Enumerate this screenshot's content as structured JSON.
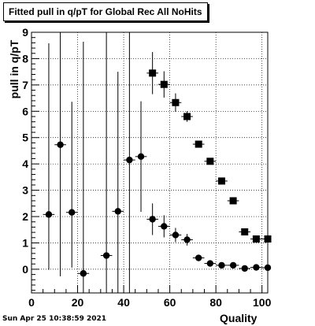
{
  "title": "Fitted pull in q/pT for Global Rec All NoHits",
  "timestamp": "Sun Apr 25 10:38:59 2021",
  "chart_data": {
    "type": "scatter",
    "title": "Fitted pull in q/pT for Global Rec All NoHits",
    "xlabel": "Quality",
    "ylabel": "pull in q/pT",
    "xlim": [
      0,
      102.5
    ],
    "ylim": [
      -0.9,
      9
    ],
    "x_ticks": [
      0,
      20,
      40,
      60,
      80,
      100
    ],
    "y_ticks": [
      0,
      1,
      2,
      3,
      4,
      5,
      6,
      7,
      8,
      9
    ],
    "grid": true,
    "series": [
      {
        "marker": "circle",
        "points": [
          {
            "x": 7.5,
            "y": 2.08,
            "xerr": 2.5,
            "yerr": [
              2.1,
              6.5
            ]
          },
          {
            "x": 12.5,
            "y": 4.73,
            "xerr": 2.5,
            "yerr": [
              5.0,
              5.0
            ]
          },
          {
            "x": 17.5,
            "y": 2.16,
            "xerr": 2.5,
            "yerr": [
              2.1,
              4.2
            ]
          },
          {
            "x": 22.5,
            "y": -0.16,
            "xerr": 2.5,
            "yerr": [
              1.0,
              8.8
            ]
          },
          {
            "x": 32.5,
            "y": 0.52,
            "xerr": 2.5,
            "yerr": [
              1.6,
              8.6
            ]
          },
          {
            "x": 37.5,
            "y": 2.2,
            "xerr": 2.5,
            "yerr": [
              3.2,
              5.3
            ]
          },
          {
            "x": 42.5,
            "y": 4.15,
            "xerr": 2.5,
            "yerr": [
              5.2,
              5.2
            ]
          },
          {
            "x": 47.5,
            "y": 4.28,
            "xerr": 2.5,
            "yerr": [
              2.1,
              2.1
            ]
          },
          {
            "x": 52.5,
            "y": 1.9,
            "xerr": 2.5,
            "yerr": [
              0.6,
              0.6
            ]
          },
          {
            "x": 57.5,
            "y": 1.63,
            "xerr": 2.5,
            "yerr": [
              0.42,
              0.42
            ]
          },
          {
            "x": 62.5,
            "y": 1.3,
            "xerr": 2.5,
            "yerr": [
              0.27,
              0.27
            ]
          },
          {
            "x": 67.5,
            "y": 1.12,
            "xerr": 2.5,
            "yerr": [
              0.22,
              0.22
            ]
          },
          {
            "x": 72.5,
            "y": 0.43,
            "xerr": 2.5,
            "yerr": [
              0.1,
              0.1
            ]
          },
          {
            "x": 77.5,
            "y": 0.22,
            "xerr": 2.5,
            "yerr": [
              0.06,
              0.06
            ]
          },
          {
            "x": 82.5,
            "y": 0.15,
            "xerr": 2.5,
            "yerr": [
              0.04,
              0.04
            ]
          },
          {
            "x": 87.5,
            "y": 0.15,
            "xerr": 2.5,
            "yerr": [
              0.03,
              0.03
            ]
          },
          {
            "x": 92.5,
            "y": 0.03,
            "xerr": 2.5,
            "yerr": [
              0.02,
              0.02
            ]
          },
          {
            "x": 97.5,
            "y": 0.07,
            "xerr": 2.5,
            "yerr": [
              0.02,
              0.02
            ]
          },
          {
            "x": 102.5,
            "y": 0.06,
            "xerr": 2.5,
            "yerr": [
              0.02,
              0.02
            ]
          }
        ]
      },
      {
        "marker": "square",
        "points": [
          {
            "x": 52.5,
            "y": 7.45,
            "xerr": 2.5,
            "yerr": [
              0.8,
              0.8
            ]
          },
          {
            "x": 57.5,
            "y": 7.02,
            "xerr": 2.5,
            "yerr": [
              0.5,
              0.5
            ]
          },
          {
            "x": 62.5,
            "y": 6.33,
            "xerr": 2.5,
            "yerr": [
              0.35,
              0.35
            ]
          },
          {
            "x": 67.5,
            "y": 5.8,
            "xerr": 2.5,
            "yerr": [
              0.2,
              0.2
            ]
          },
          {
            "x": 72.5,
            "y": 4.75,
            "xerr": 2.5,
            "yerr": [
              0.1,
              0.1
            ]
          },
          {
            "x": 77.5,
            "y": 4.1,
            "xerr": 2.5,
            "yerr": [
              0.08,
              0.08
            ]
          },
          {
            "x": 82.5,
            "y": 3.35,
            "xerr": 2.5,
            "yerr": [
              0.05,
              0.05
            ]
          },
          {
            "x": 87.5,
            "y": 2.6,
            "xerr": 2.5,
            "yerr": [
              0.05,
              0.05
            ]
          },
          {
            "x": 92.5,
            "y": 1.42,
            "xerr": 2.5,
            "yerr": [
              0.04,
              0.04
            ]
          },
          {
            "x": 97.5,
            "y": 1.15,
            "xerr": 2.5,
            "yerr": [
              0.04,
              0.04
            ]
          },
          {
            "x": 102.5,
            "y": 1.15,
            "xerr": 2.5,
            "yerr": [
              0.04,
              0.04
            ]
          }
        ]
      }
    ]
  }
}
